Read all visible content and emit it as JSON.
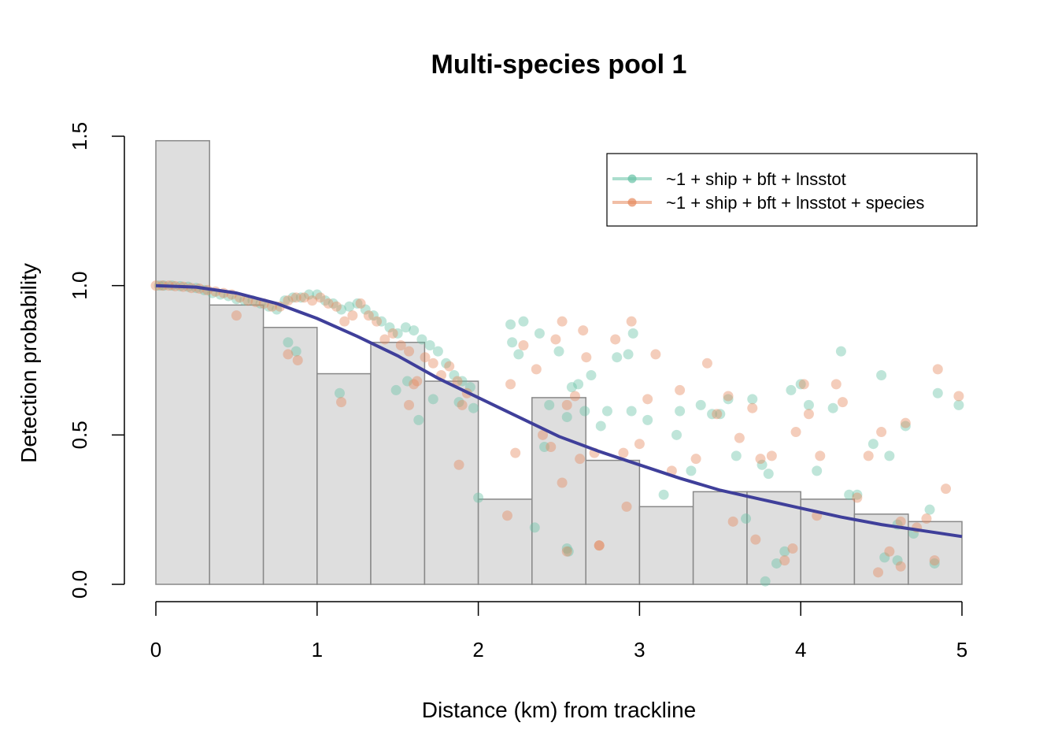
{
  "chart_data": {
    "type": "histogram+scatter+line",
    "title": "Multi-species pool 1",
    "xlabel": "Distance (km) from trackline",
    "ylabel": "Detection probability",
    "xlim": [
      0,
      5
    ],
    "ylim": [
      0,
      1.5
    ],
    "x_ticks": [
      "0",
      "1",
      "2",
      "3",
      "4",
      "5"
    ],
    "y_ticks": [
      "0.0",
      "0.5",
      "1.0",
      "1.5"
    ],
    "grid": false,
    "legend_position": "top-right",
    "colors": {
      "bar_fill": "#dedede",
      "bar_stroke": "#888888",
      "series_1": "#66c2a5",
      "series_2": "#e5895c",
      "curve": "#3f3f9a"
    },
    "histogram": {
      "bin_edges": [
        0,
        0.333,
        0.667,
        1.0,
        1.333,
        1.667,
        2.0,
        2.333,
        2.667,
        3.0,
        3.333,
        3.667,
        4.0,
        4.333,
        4.667,
        5.0
      ],
      "values": [
        1.485,
        0.935,
        0.86,
        0.705,
        0.81,
        0.68,
        0.285,
        0.625,
        0.415,
        0.26,
        0.31,
        0.31,
        0.285,
        0.235,
        0.21
      ]
    },
    "detection_curve": {
      "x": [
        0,
        0.25,
        0.5,
        0.75,
        1.0,
        1.25,
        1.5,
        1.75,
        2.0,
        2.25,
        2.5,
        2.75,
        3.0,
        3.25,
        3.5,
        3.75,
        4.0,
        4.25,
        4.5,
        4.75,
        5.0
      ],
      "y": [
        1.0,
        0.995,
        0.975,
        0.94,
        0.89,
        0.83,
        0.765,
        0.69,
        0.625,
        0.56,
        0.495,
        0.445,
        0.4,
        0.355,
        0.315,
        0.285,
        0.255,
        0.225,
        0.2,
        0.18,
        0.16
      ]
    },
    "series": [
      {
        "name": "~1 + ship + bft + lnsstot",
        "x": [
          0.02,
          0.05,
          0.1,
          0.15,
          0.2,
          0.25,
          0.3,
          0.35,
          0.4,
          0.45,
          0.5,
          0.55,
          0.6,
          0.65,
          0.7,
          0.75,
          0.8,
          0.85,
          0.9,
          0.95,
          1.0,
          1.05,
          1.1,
          1.15,
          1.2,
          1.25,
          1.3,
          1.35,
          1.4,
          1.45,
          1.5,
          1.55,
          1.6,
          1.65,
          1.7,
          1.75,
          1.8,
          1.85,
          1.9,
          1.95,
          0.82,
          0.87,
          1.14,
          1.49,
          1.56,
          1.63,
          1.72,
          1.88,
          1.97,
          2.2,
          2.21,
          2.25,
          2.28,
          2.38,
          2.41,
          2.44,
          2.5,
          2.55,
          2.58,
          2.62,
          2.66,
          2.7,
          2.76,
          2.8,
          2.86,
          2.93,
          2.95,
          2.96,
          3.05,
          3.15,
          3.25,
          3.32,
          3.38,
          3.45,
          3.5,
          3.55,
          3.6,
          3.66,
          3.7,
          3.76,
          3.8,
          3.85,
          3.9,
          3.94,
          4.0,
          4.05,
          4.1,
          4.2,
          4.25,
          4.3,
          4.35,
          4.45,
          4.5,
          4.55,
          4.6,
          4.65,
          4.7,
          4.8,
          4.85,
          4.98,
          2.55,
          2.56,
          4.83,
          4.6,
          3.78,
          4.52,
          2.0,
          2.35,
          3.23
        ],
        "y": [
          1.0,
          1.0,
          1.0,
          0.998,
          0.996,
          0.992,
          0.985,
          0.975,
          0.97,
          0.965,
          0.955,
          0.95,
          0.95,
          0.94,
          0.93,
          0.92,
          0.95,
          0.96,
          0.96,
          0.97,
          0.97,
          0.95,
          0.94,
          0.92,
          0.93,
          0.94,
          0.92,
          0.9,
          0.88,
          0.86,
          0.84,
          0.86,
          0.85,
          0.82,
          0.8,
          0.78,
          0.74,
          0.7,
          0.68,
          0.66,
          0.81,
          0.78,
          0.64,
          0.65,
          0.68,
          0.55,
          0.62,
          0.61,
          0.59,
          0.87,
          0.81,
          0.77,
          0.88,
          0.84,
          0.46,
          0.6,
          0.78,
          0.56,
          0.66,
          0.67,
          0.58,
          0.7,
          0.53,
          0.58,
          0.76,
          0.77,
          0.58,
          0.84,
          0.55,
          0.3,
          0.58,
          0.38,
          0.6,
          0.57,
          0.57,
          0.62,
          0.43,
          0.22,
          0.62,
          0.4,
          0.37,
          0.07,
          0.11,
          0.65,
          0.67,
          0.6,
          0.38,
          0.59,
          0.78,
          0.3,
          0.3,
          0.47,
          0.7,
          0.43,
          0.2,
          0.53,
          0.17,
          0.25,
          0.64,
          0.6,
          0.12,
          0.11,
          0.07,
          0.08,
          0.01,
          0.09,
          0.29,
          0.19,
          0.5
        ]
      },
      {
        "name": "~1 + ship + bft + lnsstot + species",
        "x": [
          0.0,
          0.04,
          0.08,
          0.12,
          0.17,
          0.22,
          0.27,
          0.32,
          0.37,
          0.42,
          0.47,
          0.52,
          0.57,
          0.62,
          0.67,
          0.72,
          0.77,
          0.82,
          0.87,
          0.92,
          0.97,
          1.02,
          1.07,
          1.12,
          1.17,
          1.22,
          1.27,
          1.32,
          1.37,
          1.42,
          1.47,
          1.52,
          1.57,
          1.62,
          1.67,
          1.72,
          1.77,
          1.82,
          1.87,
          1.93,
          0.5,
          0.82,
          0.88,
          1.15,
          1.57,
          1.6,
          1.9,
          2.2,
          2.23,
          2.28,
          2.36,
          2.4,
          2.45,
          2.48,
          2.52,
          2.55,
          2.6,
          2.65,
          2.67,
          2.72,
          2.75,
          2.85,
          2.9,
          2.95,
          3.0,
          3.05,
          3.1,
          3.2,
          3.25,
          3.35,
          3.42,
          3.48,
          3.55,
          3.58,
          3.62,
          3.7,
          3.75,
          3.82,
          3.9,
          3.95,
          4.02,
          4.05,
          4.12,
          4.22,
          4.26,
          4.35,
          4.42,
          4.5,
          4.55,
          4.62,
          4.65,
          4.72,
          4.78,
          4.85,
          4.9,
          4.98,
          1.88,
          2.18,
          2.52,
          2.55,
          2.75,
          2.92,
          3.97,
          4.48,
          4.62,
          4.83,
          4.1,
          3.72,
          2.63
        ],
        "y": [
          1.0,
          1.0,
          1.0,
          0.998,
          0.996,
          0.992,
          0.99,
          0.985,
          0.98,
          0.975,
          0.97,
          0.96,
          0.95,
          0.945,
          0.94,
          0.93,
          0.93,
          0.95,
          0.96,
          0.96,
          0.95,
          0.96,
          0.94,
          0.93,
          0.88,
          0.9,
          0.94,
          0.9,
          0.88,
          0.82,
          0.84,
          0.8,
          0.78,
          0.68,
          0.76,
          0.74,
          0.7,
          0.73,
          0.68,
          0.64,
          0.9,
          0.77,
          0.75,
          0.61,
          0.6,
          0.67,
          0.6,
          0.67,
          0.44,
          0.8,
          0.72,
          0.5,
          0.46,
          0.82,
          0.88,
          0.6,
          0.63,
          0.85,
          0.76,
          0.44,
          0.13,
          0.82,
          0.44,
          0.88,
          0.47,
          0.62,
          0.77,
          0.38,
          0.65,
          0.42,
          0.74,
          0.57,
          0.63,
          0.21,
          0.49,
          0.59,
          0.42,
          0.43,
          0.08,
          0.12,
          0.67,
          0.57,
          0.43,
          0.67,
          0.61,
          0.29,
          0.43,
          0.51,
          0.11,
          0.21,
          0.54,
          0.19,
          0.22,
          0.72,
          0.32,
          0.63,
          0.4,
          0.23,
          0.34,
          0.11,
          0.13,
          0.26,
          0.51,
          0.04,
          0.06,
          0.08,
          0.23,
          0.15,
          0.42
        ]
      }
    ]
  }
}
